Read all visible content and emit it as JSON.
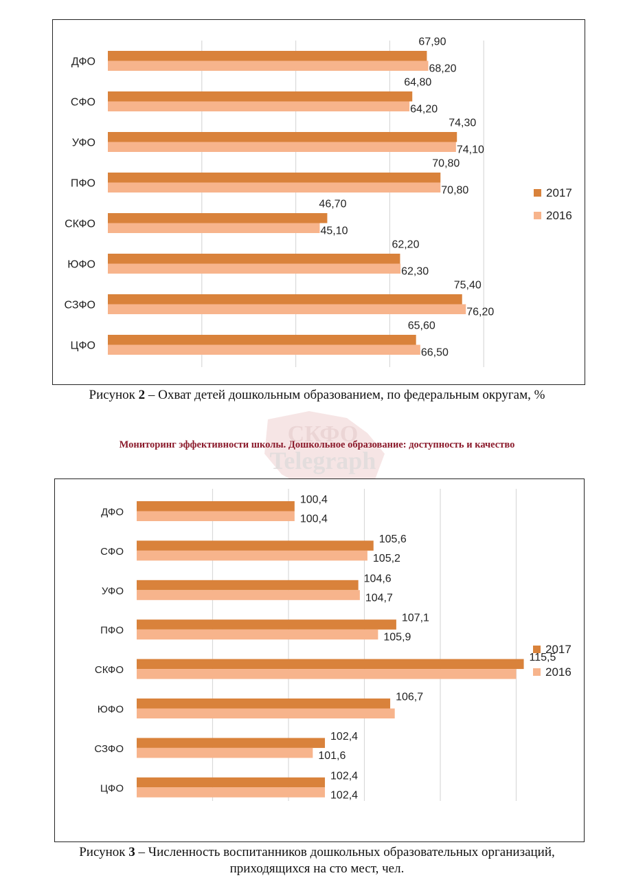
{
  "colors": {
    "s2017": "#d9823b",
    "s2016": "#f7b48c",
    "grid": "#d9d9d9",
    "label": "#222222"
  },
  "charts": [
    {
      "id": "fig2",
      "chart_data": {
        "type": "bar",
        "orientation": "horizontal",
        "categories": [
          "ДФО",
          "СФО",
          "УФО",
          "ПФО",
          "СКФО",
          "ЮФО",
          "СЗФО",
          "ЦФО"
        ],
        "series": [
          {
            "name": "2017",
            "values": [
              67.9,
              64.8,
              74.3,
              70.8,
              46.7,
              62.2,
              75.4,
              65.6
            ],
            "labels": [
              "67,90",
              "64,80",
              "74,30",
              "70,80",
              "46,70",
              "62,20",
              "75,40",
              "65,60"
            ]
          },
          {
            "name": "2016",
            "values": [
              68.2,
              64.2,
              74.1,
              70.8,
              45.1,
              62.3,
              76.2,
              66.5
            ],
            "labels": [
              "68,20",
              "64,20",
              "74,10",
              "70,80",
              "45,10",
              "62,30",
              "76,20",
              "66,50"
            ]
          }
        ],
        "xlim": [
          0,
          100
        ],
        "grid": true,
        "legend_position": "right"
      }
    },
    {
      "id": "fig3",
      "chart_data": {
        "type": "bar",
        "orientation": "horizontal",
        "categories": [
          "ДФО",
          "СФО",
          "УФО",
          "ПФО",
          "СКФО",
          "ЮФО",
          "СЗФО",
          "ЦФО"
        ],
        "series": [
          {
            "name": "2017",
            "values": [
              100.4,
              105.6,
              104.6,
              107.1,
              115.5,
              106.7,
              102.4,
              102.4
            ],
            "labels": [
              "100,4",
              "105,6",
              "104,6",
              "107,1",
              "115,5",
              "106,7",
              "102,4",
              "102,4"
            ]
          },
          {
            "name": "2016",
            "values": [
              100.4,
              105.2,
              104.7,
              105.9,
              115.0,
              107.0,
              101.6,
              102.4
            ],
            "labels": [
              "100,4",
              "105,2",
              "104,7",
              "105,9",
              "",
              "",
              "101,6",
              "102,4"
            ]
          }
        ],
        "xlim": [
          90,
          120
        ],
        "grid": true,
        "legend_position": "right"
      }
    }
  ],
  "captions": {
    "fig2_prefix": "Рисунок ",
    "fig2_number": "2",
    "fig2_text": " – Охват детей дошкольным образованием, по федеральным округам, %",
    "monitoring": "Мониторинг эффективности школы. Дошкольное образование: доступность и качество",
    "fig3_prefix": "Рисунок ",
    "fig3_number": "3",
    "fig3_text": " – Численность воспитанников дошкольных образовательных организаций, приходящихся на сто мест, чел."
  },
  "watermark": {
    "line1": "СКФО",
    "line2": "Telegraph"
  }
}
